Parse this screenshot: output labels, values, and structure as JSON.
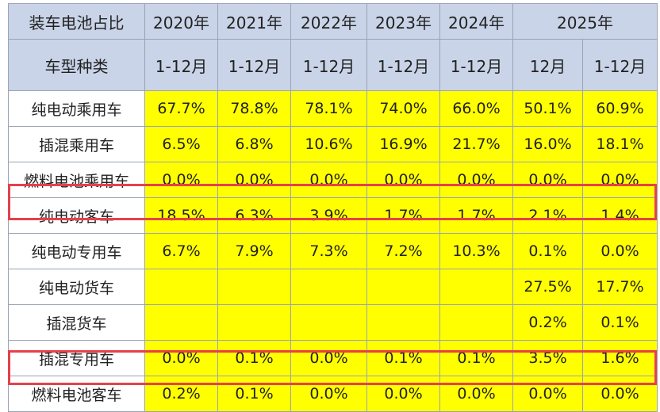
{
  "header": {
    "title": "装车电池占比",
    "years": [
      "2020年",
      "2021年",
      "2022年",
      "2023年",
      "2024年",
      "2025年"
    ],
    "type_label": "车型种类",
    "periods": [
      "1-12月",
      "1-12月",
      "1-12月",
      "1-12月",
      "1-12月",
      "12月",
      "1-12月"
    ]
  },
  "rows": [
    {
      "label": "纯电动乘用车",
      "values": [
        "67.7%",
        "78.8%",
        "78.1%",
        "74.0%",
        "66.0%",
        "50.1%",
        "60.9%"
      ]
    },
    {
      "label": "插混乘用车",
      "values": [
        "6.5%",
        "6.8%",
        "10.6%",
        "16.9%",
        "21.7%",
        "16.0%",
        "18.1%"
      ]
    },
    {
      "label": "燃料电池乘用车",
      "values": [
        "0.0%",
        "0.0%",
        "0.0%",
        "0.0%",
        "0.0%",
        "0.0%",
        "0.0%"
      ]
    },
    {
      "label": "纯电动客车",
      "values": [
        "18.5%",
        "6.3%",
        "3.9%",
        "1.7%",
        "1.7%",
        "2.1%",
        "1.4%"
      ]
    },
    {
      "label": "纯电动专用车",
      "values": [
        "6.7%",
        "7.9%",
        "7.3%",
        "7.2%",
        "10.3%",
        "0.1%",
        "0.0%"
      ]
    },
    {
      "label": "纯电动货车",
      "values": [
        "",
        "",
        "",
        "",
        "",
        "27.5%",
        "17.7%"
      ]
    },
    {
      "label": "插混货车",
      "values": [
        "",
        "",
        "",
        "",
        "",
        "0.2%",
        "0.1%"
      ]
    },
    {
      "label": "插混专用车",
      "values": [
        "0.0%",
        "0.1%",
        "0.0%",
        "0.1%",
        "0.1%",
        "3.5%",
        "1.6%"
      ]
    },
    {
      "label": "燃料电池客车",
      "values": [
        "0.2%",
        "0.1%",
        "0.0%",
        "0.0%",
        "0.0%",
        "0.0%",
        "0.0%"
      ]
    }
  ],
  "colors": {
    "header_bg": "#c9d4e8",
    "value_bg": "#ffff00",
    "title_red": "#e02020",
    "highlight": "#e8404a"
  }
}
